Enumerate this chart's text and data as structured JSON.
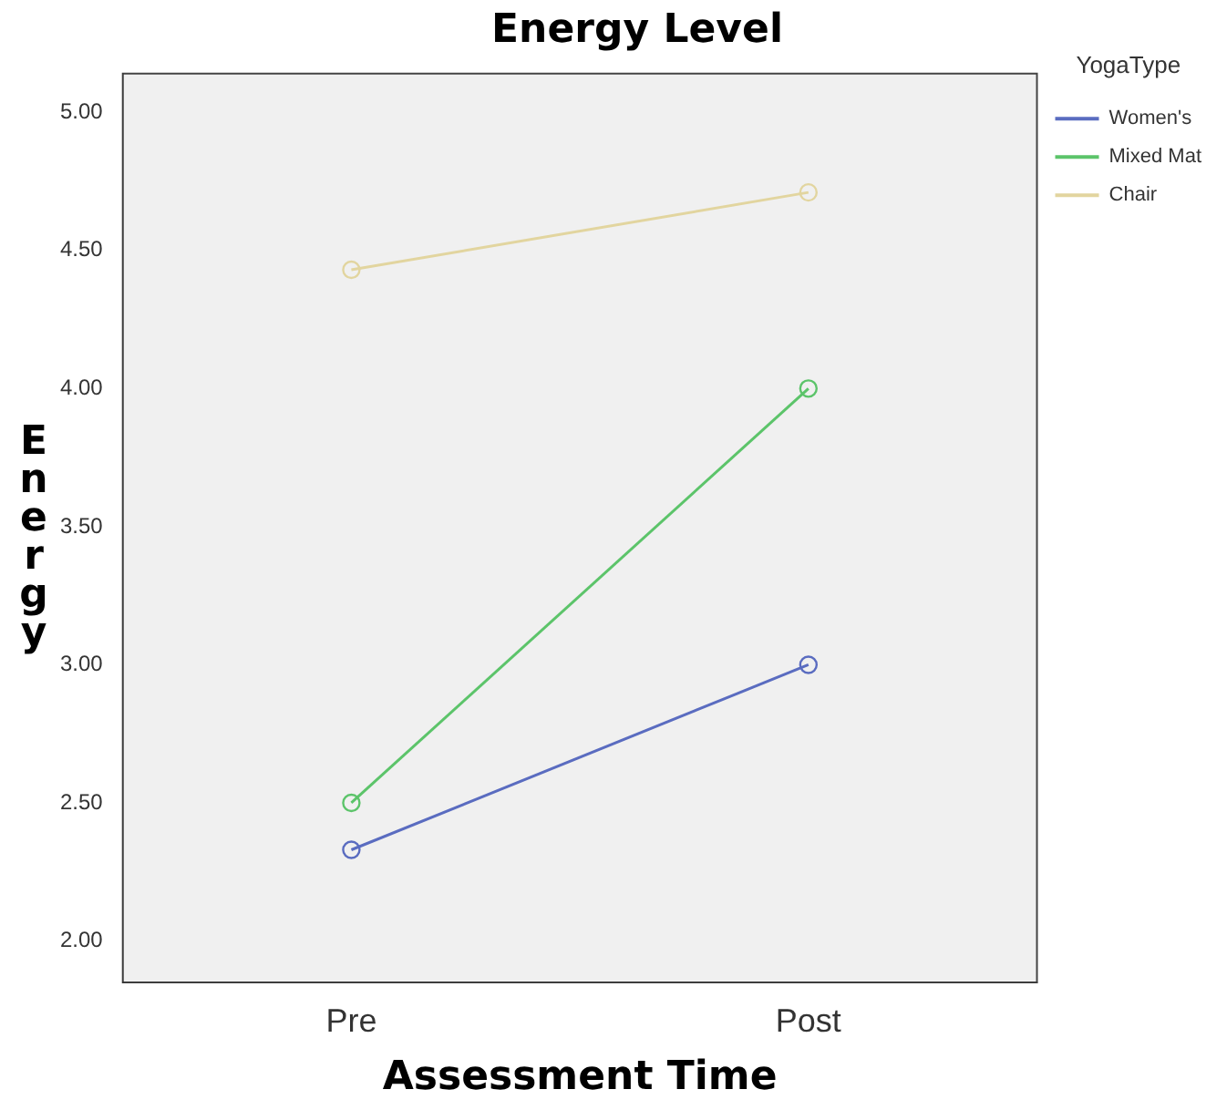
{
  "chart_data": {
    "type": "line",
    "title": "Energy Level",
    "xlabel": "Assessment Time",
    "ylabel": "Energy",
    "legend_title": "YogaType",
    "categories": [
      "Pre",
      "Post"
    ],
    "series": [
      {
        "name": "Women's",
        "color": "#5a6cc0",
        "values": [
          2.33,
          3.0
        ]
      },
      {
        "name": "Mixed Mat",
        "color": "#5cc46a",
        "values": [
          2.5,
          4.0
        ]
      },
      {
        "name": "Chair",
        "color": "#e2d59f",
        "values": [
          4.43,
          4.71
        ]
      }
    ],
    "ylim": [
      1.85,
      5.14
    ],
    "yticks": [
      {
        "value": 2,
        "label": "2.00"
      },
      {
        "value": 2.5,
        "label": "2.50"
      },
      {
        "value": 3,
        "label": "3.00"
      },
      {
        "value": 3.5,
        "label": "3.50"
      },
      {
        "value": 4,
        "label": "4.00"
      },
      {
        "value": 4.5,
        "label": "4.50"
      },
      {
        "value": 5,
        "label": "5.00"
      }
    ],
    "grid": false,
    "legend": "right",
    "marker": "circle",
    "line_style": "solid"
  }
}
